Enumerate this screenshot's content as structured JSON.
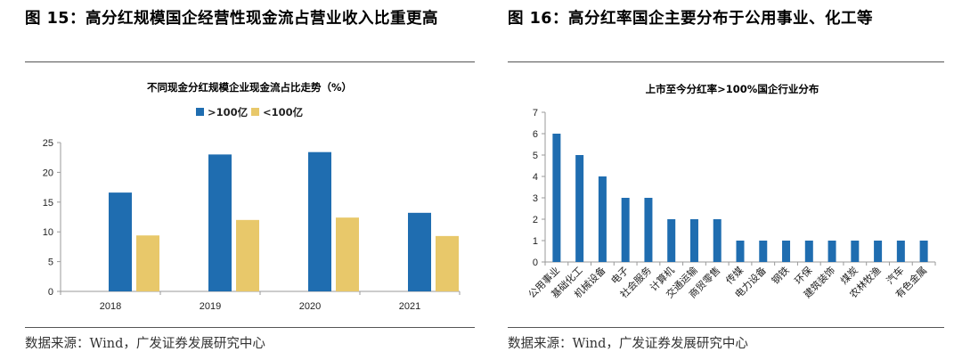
{
  "left": {
    "title": "图 15：高分红规模国企经营性现金流占营业收入比重更高",
    "source": "数据来源：Wind，广发证券发展研究中心"
  },
  "right": {
    "title": "图 16：高分红率国企主要分布于公用事业、化工等",
    "source": "数据来源：Wind，广发证券发展研究中心"
  },
  "colors": {
    "blue": "#1F6DB0",
    "yellow": "#E8C86A",
    "axis": "#9a9a9a"
  },
  "chart_data": [
    {
      "type": "bar",
      "title": "不同现金分红规模企业现金流占比走势（%）",
      "categories": [
        "2018",
        "2019",
        "2020",
        "2021"
      ],
      "series": [
        {
          "name": ">100亿",
          "values": [
            16.6,
            23.0,
            23.4,
            13.2
          ],
          "color": "#1F6DB0"
        },
        {
          "name": "<100亿",
          "values": [
            9.4,
            12.0,
            12.4,
            9.3
          ],
          "color": "#E8C86A"
        }
      ],
      "ylim": [
        0,
        25
      ],
      "yticks": [
        0,
        5,
        10,
        15,
        20,
        25
      ],
      "legend_position": "top-center",
      "grid": false
    },
    {
      "type": "bar",
      "title": "上市至今分红率>100%国企行业分布",
      "categories": [
        "公用事业",
        "基础化工",
        "机械设备",
        "电子",
        "社会服务",
        "计算机",
        "交通运输",
        "商贸零售",
        "传媒",
        "电力设备",
        "钢铁",
        "环保",
        "建筑装饰",
        "煤炭",
        "农林牧渔",
        "汽车",
        "有色金属"
      ],
      "values": [
        6,
        5,
        4,
        3,
        3,
        2,
        2,
        2,
        1,
        1,
        1,
        1,
        1,
        1,
        1,
        1,
        1
      ],
      "ylim": [
        0,
        7
      ],
      "yticks": [
        0,
        1,
        2,
        3,
        4,
        5,
        6,
        7
      ],
      "grid": false
    }
  ]
}
